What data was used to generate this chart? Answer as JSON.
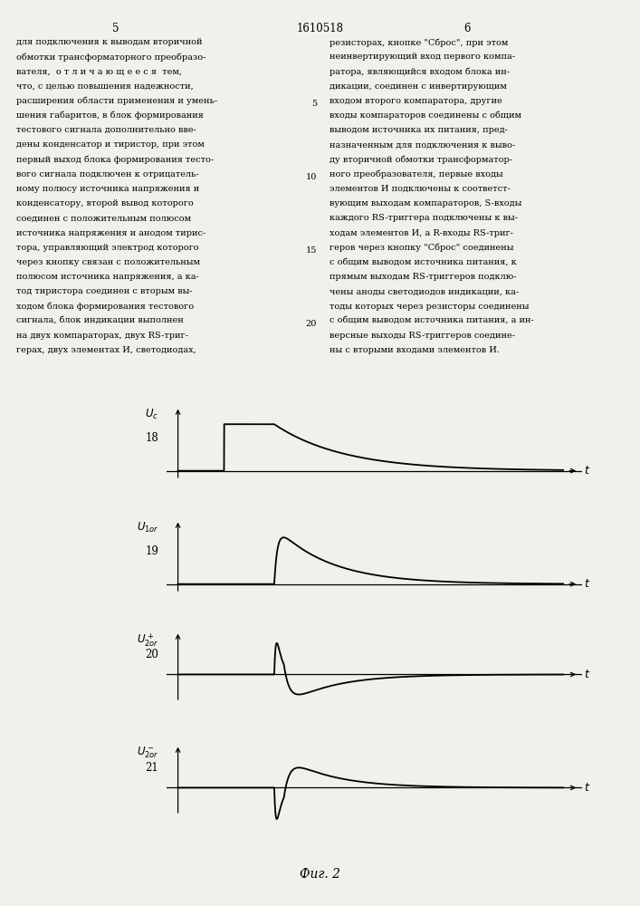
{
  "page_title": "1610518",
  "page_col_left": "5",
  "page_col_right": "6",
  "fig_caption": "Фиг. 2",
  "text_left_lines": [
    "для подключения к выводам вторичной",
    "обмотки трансформаторного преобразо-",
    "вателя,  о т л и ч а ю щ е е с я  тем,",
    "что, с целью повышения надежности,",
    "расширения области применения и умень-",
    "шения габаритов, в блок формирования",
    "тестового сигнала дополнительно вве-",
    "дены конденсатор и тиристор, при этом",
    "первый выход блока формирования тесто-",
    "вого сигнала подключен к отрицатель-",
    "ному полюсу источника напряжения и",
    "конденсатору, второй вывод которого",
    "соединен с положительным полюсом",
    "источника напряжения и анодом тирис-",
    "тора, управляющий электрод которого",
    "через кнопку связан с положительным",
    "полюсом источника напряжения, а ка-",
    "тод тиристора соединен с вторым вы-",
    "ходом блока формирования тестового",
    "сигнала, блок индикации выполнен",
    "на двух компараторах, двух RS-триг-",
    "герах, двух элементах И, светодиодах,"
  ],
  "text_right_lines": [
    "резисторах, кнопке \"Сброс\", при этом",
    "неинвертирующий вход первого компа-",
    "ратора, являющийся входом блока ин-",
    "дикации, соединен с инвертирующим",
    "входом второго компаратора, другие",
    "входы компараторов соединены с общим",
    "выводом источника их питания, пред-",
    "назначенным для подключения к выво-",
    "ду вторичной обмотки трансформатор-",
    "ного преобразователя, первые входы",
    "элементов И подключены к соответст-",
    "вующим выходам компараторов, S-входы",
    "каждого RS-триггера подключены к вы-",
    "ходам элементов И, а R-входы RS-триг-",
    "геров через кнопку \"Сброс\" соединены",
    "с общим выводом источника питания, к",
    "прямым выходам RS-триггеров подклю-",
    "чены аноды светодиодов индикации, ка-",
    "тоды которых через резисторы соединены",
    "с общим выводом источника питания, а ин-",
    "версные выходы RS-триггеров соедине-",
    "ны с вторыми входами элементов И."
  ],
  "line_numbers": [
    5,
    10,
    15,
    20
  ],
  "line_number_rows": [
    4,
    9,
    14,
    19
  ],
  "plots": [
    {
      "label": "$U_c$",
      "number": "18",
      "type": "step_decay"
    },
    {
      "label": "$U_{1or}$",
      "number": "19",
      "type": "spike_decay"
    },
    {
      "label": "$U^+_{2or}$",
      "number": "20",
      "type": "spike_then_negative"
    },
    {
      "label": "$U^-_{2or}$",
      "number": "21",
      "type": "neg_spike_then_positive"
    }
  ],
  "background_color": "#f2f0eb",
  "line_color": "#000000"
}
